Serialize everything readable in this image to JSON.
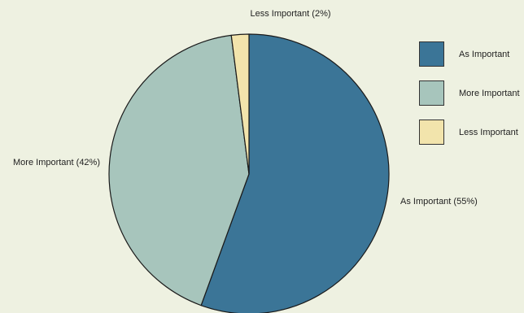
{
  "chart_data": {
    "type": "pie",
    "slices": [
      {
        "name": "As Important",
        "value": 55,
        "label": "As Important (55%)",
        "color": "#3b7597"
      },
      {
        "name": "More Important",
        "value": 42,
        "label": "More Important (42%)",
        "color": "#a7c5bc"
      },
      {
        "name": "Less Important",
        "value": 2,
        "label": "Less Important (2%)",
        "color": "#f2e4ac"
      }
    ],
    "legend": {
      "position": "right",
      "entries": [
        "As Important",
        "More Important",
        "Less Important"
      ]
    }
  },
  "colors": {
    "background": "#eef1e1",
    "outline": "#1a1a1a"
  }
}
